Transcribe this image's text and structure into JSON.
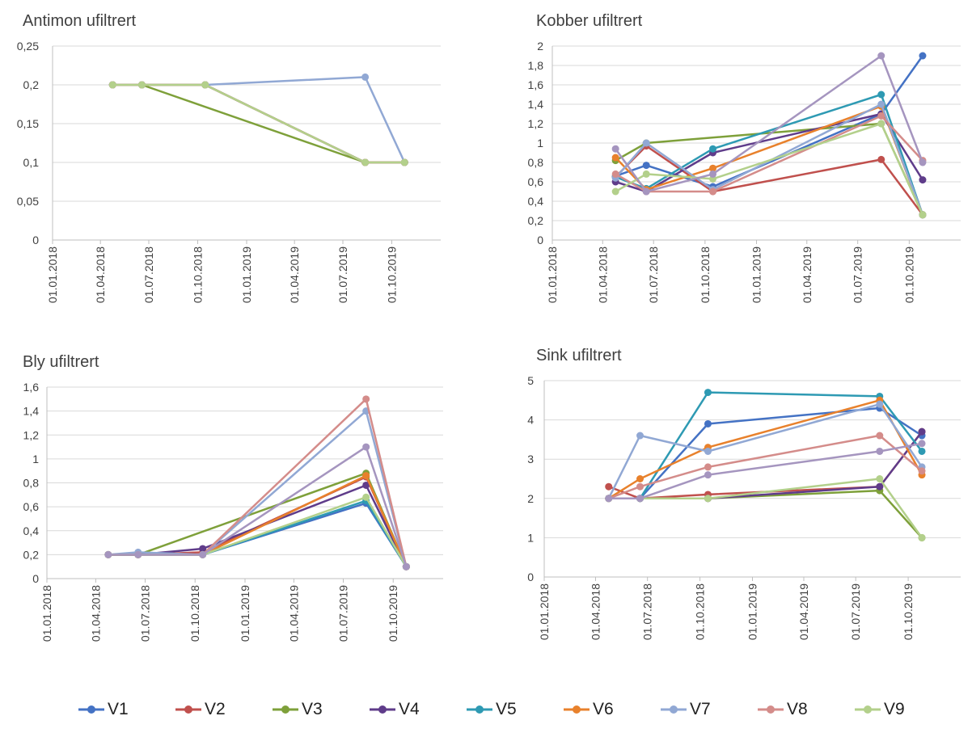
{
  "chart_data": [
    {
      "type": "line",
      "title": "Antimon ufiltrert",
      "x_ticks": [
        "01.01.2018",
        "01.04.2018",
        "01.07.2018",
        "01.10.2018",
        "01.01.2019",
        "01.04.2019",
        "01.07.2019",
        "01.10.2019"
      ],
      "y_ticks": [
        "0",
        "0,05",
        "0,1",
        "0,15",
        "0,2",
        "0,25"
      ],
      "ylim": [
        0,
        0.25
      ],
      "xlim": [
        "2018-01-01",
        "2020-01-01"
      ],
      "grid": true,
      "series": [
        {
          "name": "V1",
          "x": [
            "2018-04-24",
            "2018-06-18",
            "2018-10-15",
            "2019-08-12",
            "2019-10-25"
          ],
          "values": [
            0.2,
            0.2,
            0.2,
            0.1,
            0.1
          ]
        },
        {
          "name": "V2",
          "x": [
            "2018-04-24",
            "2018-06-18",
            "2018-10-15",
            "2019-08-12",
            "2019-10-25"
          ],
          "values": [
            0.2,
            0.2,
            0.2,
            0.1,
            0.1
          ]
        },
        {
          "name": "V3",
          "x": [
            "2018-04-24",
            "2018-06-18",
            "2019-08-12",
            "2019-10-25"
          ],
          "values": [
            0.2,
            0.2,
            0.1,
            0.1
          ]
        },
        {
          "name": "V4",
          "x": [
            "2018-04-24",
            "2018-06-18",
            "2018-10-15",
            "2019-08-12",
            "2019-10-25"
          ],
          "values": [
            0.2,
            0.2,
            0.2,
            0.1,
            0.1
          ]
        },
        {
          "name": "V5",
          "x": [
            "2018-04-24",
            "2018-06-18",
            "2018-10-15",
            "2019-08-12",
            "2019-10-25"
          ],
          "values": [
            0.2,
            0.2,
            0.2,
            0.1,
            0.1
          ]
        },
        {
          "name": "V6",
          "x": [
            "2018-04-24",
            "2018-06-18",
            "2018-10-15",
            "2019-08-12",
            "2019-10-25"
          ],
          "values": [
            0.2,
            0.2,
            0.2,
            0.1,
            0.1
          ]
        },
        {
          "name": "V7",
          "x": [
            "2018-04-24",
            "2018-06-18",
            "2018-10-15",
            "2019-08-12",
            "2019-10-25"
          ],
          "values": [
            0.2,
            0.2,
            0.2,
            0.21,
            0.1
          ]
        },
        {
          "name": "V8",
          "x": [
            "2018-04-24",
            "2018-06-18",
            "2018-10-15",
            "2019-08-12",
            "2019-10-25"
          ],
          "values": [
            0.2,
            0.2,
            0.2,
            0.1,
            0.1
          ]
        },
        {
          "name": "V9",
          "x": [
            "2018-04-24",
            "2018-06-18",
            "2018-10-15",
            "2019-08-12",
            "2019-10-25"
          ],
          "values": [
            0.2,
            0.2,
            0.2,
            0.1,
            0.1
          ]
        }
      ]
    },
    {
      "type": "line",
      "title": "Kobber ufiltrert",
      "x_ticks": [
        "01.01.2018",
        "01.04.2018",
        "01.07.2018",
        "01.10.2018",
        "01.01.2019",
        "01.04.2019",
        "01.07.2019",
        "01.10.2019"
      ],
      "y_ticks": [
        "0",
        "0,2",
        "0,4",
        "0,6",
        "0,8",
        "1",
        "1,2",
        "1,4",
        "1,6",
        "1,8",
        "2"
      ],
      "ylim": [
        0,
        2
      ],
      "xlim": [
        "2018-01-01",
        "2020-01-01"
      ],
      "grid": true,
      "series": [
        {
          "name": "V1",
          "x": [
            "2018-04-24",
            "2018-06-18",
            "2018-10-15",
            "2019-08-12",
            "2019-10-25"
          ],
          "values": [
            0.66,
            0.77,
            0.55,
            1.3,
            1.9
          ]
        },
        {
          "name": "V2",
          "x": [
            "2018-04-24",
            "2018-06-18",
            "2018-10-15",
            "2019-08-12",
            "2019-10-25"
          ],
          "values": [
            0.65,
            0.97,
            0.5,
            0.83,
            0.26
          ]
        },
        {
          "name": "V3",
          "x": [
            "2018-04-24",
            "2018-06-18",
            "2019-08-12",
            "2019-10-25"
          ],
          "values": [
            0.82,
            1.0,
            1.2,
            0.26
          ]
        },
        {
          "name": "V4",
          "x": [
            "2018-04-24",
            "2018-06-18",
            "2018-10-15",
            "2019-08-12",
            "2019-10-25"
          ],
          "values": [
            0.6,
            0.5,
            0.9,
            1.3,
            0.62
          ]
        },
        {
          "name": "V5",
          "x": [
            "2018-04-24",
            "2018-06-18",
            "2018-10-15",
            "2019-08-12",
            "2019-10-25"
          ],
          "values": [
            0.65,
            0.53,
            0.94,
            1.5,
            0.26
          ]
        },
        {
          "name": "V6",
          "x": [
            "2018-04-24",
            "2018-06-18",
            "2018-10-15",
            "2019-08-12",
            "2019-10-25"
          ],
          "values": [
            0.85,
            0.52,
            0.74,
            1.38,
            0.26
          ]
        },
        {
          "name": "V7",
          "x": [
            "2018-04-24",
            "2018-06-18",
            "2018-10-15",
            "2019-08-12",
            "2019-10-25"
          ],
          "values": [
            0.64,
            1.0,
            0.52,
            1.4,
            0.26
          ]
        },
        {
          "name": "V8",
          "x": [
            "2018-04-24",
            "2018-06-18",
            "2018-10-15",
            "2019-08-12",
            "2019-10-25"
          ],
          "values": [
            0.68,
            0.5,
            0.5,
            1.28,
            0.82
          ]
        },
        {
          "name": "V9",
          "x": [
            "2018-04-24",
            "2018-06-18",
            "2018-10-15",
            "2019-08-12",
            "2019-10-25"
          ],
          "values": [
            0.5,
            0.68,
            0.63,
            1.2,
            0.26
          ]
        },
        {
          "name": "",
          "x": [
            "2018-04-24",
            "2018-06-18",
            "2018-10-15",
            "2019-08-12",
            "2019-10-25"
          ],
          "values": [
            0.94,
            0.5,
            0.68,
            1.9,
            0.8
          ]
        }
      ]
    },
    {
      "type": "line",
      "title": "Bly ufiltrert",
      "x_ticks": [
        "01.01.2018",
        "01.04.2018",
        "01.07.2018",
        "01.10.2018",
        "01.01.2019",
        "01.04.2019",
        "01.07.2019",
        "01.10.2019"
      ],
      "y_ticks": [
        "0",
        "0,2",
        "0,4",
        "0,6",
        "0,8",
        "1",
        "1,2",
        "1,4",
        "1,6"
      ],
      "ylim": [
        0,
        1.6
      ],
      "xlim": [
        "2018-01-01",
        "2020-01-01"
      ],
      "grid": true,
      "series": [
        {
          "name": "V1",
          "x": [
            "2018-04-24",
            "2018-06-18",
            "2018-10-15",
            "2019-08-12",
            "2019-10-25"
          ],
          "values": [
            0.2,
            0.2,
            0.2,
            0.63,
            0.1
          ]
        },
        {
          "name": "V2",
          "x": [
            "2018-04-24",
            "2018-06-18",
            "2018-10-15",
            "2019-08-12",
            "2019-10-25"
          ],
          "values": [
            0.2,
            0.2,
            0.22,
            0.85,
            0.1
          ]
        },
        {
          "name": "V3",
          "x": [
            "2018-04-24",
            "2018-06-18",
            "2019-08-12",
            "2019-10-25"
          ],
          "values": [
            0.2,
            0.2,
            0.88,
            0.1
          ]
        },
        {
          "name": "V4",
          "x": [
            "2018-04-24",
            "2018-06-18",
            "2018-10-15",
            "2019-08-12",
            "2019-10-25"
          ],
          "values": [
            0.2,
            0.2,
            0.25,
            0.78,
            0.1
          ]
        },
        {
          "name": "V5",
          "x": [
            "2018-04-24",
            "2018-06-18",
            "2018-10-15",
            "2019-08-12",
            "2019-10-25"
          ],
          "values": [
            0.2,
            0.2,
            0.2,
            0.65,
            0.1
          ]
        },
        {
          "name": "V6",
          "x": [
            "2018-04-24",
            "2018-06-18",
            "2018-10-15",
            "2019-08-12",
            "2019-10-25"
          ],
          "values": [
            0.2,
            0.2,
            0.2,
            0.86,
            0.1
          ]
        },
        {
          "name": "V7",
          "x": [
            "2018-04-24",
            "2018-06-18",
            "2018-10-15",
            "2019-08-12",
            "2019-10-25"
          ],
          "values": [
            0.2,
            0.22,
            0.2,
            1.4,
            0.1
          ]
        },
        {
          "name": "V8",
          "x": [
            "2018-04-24",
            "2018-06-18",
            "2018-10-15",
            "2019-08-12",
            "2019-10-25"
          ],
          "values": [
            0.2,
            0.2,
            0.2,
            1.5,
            0.1
          ]
        },
        {
          "name": "V9",
          "x": [
            "2018-04-24",
            "2018-06-18",
            "2018-10-15",
            "2019-08-12",
            "2019-10-25"
          ],
          "values": [
            0.2,
            0.2,
            0.2,
            0.68,
            0.1
          ]
        },
        {
          "name": "",
          "x": [
            "2018-04-24",
            "2018-06-18",
            "2018-10-15",
            "2019-08-12",
            "2019-10-25"
          ],
          "values": [
            0.2,
            0.2,
            0.2,
            1.1,
            0.1
          ]
        }
      ]
    },
    {
      "type": "line",
      "title": "Sink ufiltrert",
      "x_ticks": [
        "01.01.2018",
        "01.04.2018",
        "01.07.2018",
        "01.10.2018",
        "01.01.2019",
        "01.04.2019",
        "01.07.2019",
        "01.10.2019"
      ],
      "y_ticks": [
        "0",
        "1",
        "2",
        "3",
        "4",
        "5"
      ],
      "ylim": [
        0,
        5
      ],
      "xlim": [
        "2018-01-01",
        "2020-01-01"
      ],
      "grid": true,
      "series": [
        {
          "name": "V1",
          "x": [
            "2018-04-24",
            "2018-06-18",
            "2018-10-15",
            "2019-08-12",
            "2019-10-25"
          ],
          "values": [
            2.0,
            2.0,
            3.9,
            4.3,
            3.6
          ]
        },
        {
          "name": "V2",
          "x": [
            "2018-04-24",
            "2018-06-18",
            "2018-10-15",
            "2019-08-12",
            "2019-10-25"
          ],
          "values": [
            2.3,
            2.0,
            2.1,
            2.3,
            3.7
          ]
        },
        {
          "name": "V3",
          "x": [
            "2018-04-24",
            "2018-06-18",
            "2018-10-15",
            "2019-08-12",
            "2019-10-25"
          ],
          "values": [
            2.0,
            2.0,
            2.0,
            2.2,
            1.0
          ]
        },
        {
          "name": "V4",
          "x": [
            "2018-04-24",
            "2018-06-18",
            "2018-10-15",
            "2019-08-12",
            "2019-10-25"
          ],
          "values": [
            2.0,
            2.0,
            2.0,
            2.3,
            3.7
          ]
        },
        {
          "name": "V5",
          "x": [
            "2018-04-24",
            "2018-06-18",
            "2018-10-15",
            "2019-08-12",
            "2019-10-25"
          ],
          "values": [
            2.0,
            2.0,
            4.7,
            4.6,
            3.2
          ]
        },
        {
          "name": "V6",
          "x": [
            "2018-04-24",
            "2018-06-18",
            "2018-10-15",
            "2019-08-12",
            "2019-10-25"
          ],
          "values": [
            2.0,
            2.5,
            3.3,
            4.5,
            2.6
          ]
        },
        {
          "name": "V7",
          "x": [
            "2018-04-24",
            "2018-06-18",
            "2018-10-15",
            "2019-08-12",
            "2019-10-25"
          ],
          "values": [
            2.0,
            3.6,
            3.2,
            4.4,
            2.8
          ]
        },
        {
          "name": "V8",
          "x": [
            "2018-04-24",
            "2018-06-18",
            "2018-10-15",
            "2019-08-12",
            "2019-10-25"
          ],
          "values": [
            2.0,
            2.3,
            2.8,
            3.6,
            2.7
          ]
        },
        {
          "name": "V9",
          "x": [
            "2018-04-24",
            "2018-06-18",
            "2018-10-15",
            "2019-08-12",
            "2019-10-25"
          ],
          "values": [
            2.0,
            2.0,
            2.0,
            2.5,
            1.0
          ]
        },
        {
          "name": "",
          "x": [
            "2018-04-24",
            "2018-06-18",
            "2018-10-15",
            "2019-08-12",
            "2019-10-25"
          ],
          "values": [
            2.0,
            2.0,
            2.6,
            3.2,
            3.4
          ]
        }
      ]
    }
  ],
  "legend": {
    "placement": "bottom",
    "items": [
      {
        "label": "V1",
        "color": "#4472c4"
      },
      {
        "label": "V2",
        "color": "#c0504d"
      },
      {
        "label": "V3",
        "color": "#7ea03a"
      },
      {
        "label": "V4",
        "color": "#5f3c8a"
      },
      {
        "label": "V5",
        "color": "#2e9ab3"
      },
      {
        "label": "V6",
        "color": "#e8812c"
      },
      {
        "label": "V7",
        "color": "#91a8d4"
      },
      {
        "label": "V8",
        "color": "#d48c8a"
      },
      {
        "label": "V9",
        "color": "#b3d08b"
      }
    ],
    "extra_series_color": "#a595bf"
  }
}
